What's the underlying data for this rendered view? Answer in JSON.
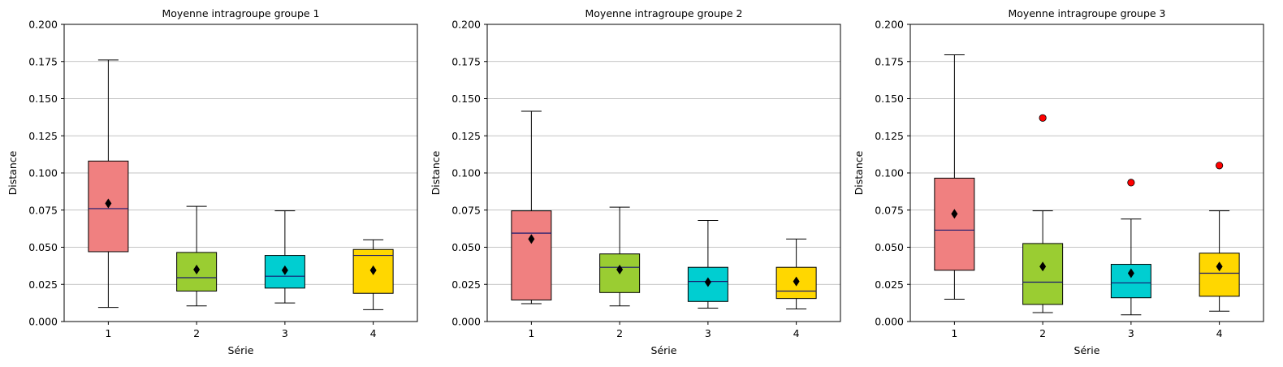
{
  "colors": {
    "box_fills": [
      "#f08080",
      "#9acd32",
      "#00ced1",
      "#ffd700"
    ],
    "median_line": "#191970",
    "mean_marker": "#000000",
    "outlier_fill": "#ff0000",
    "grid": "#b0b0b0"
  },
  "chart_data": [
    {
      "type": "box",
      "title": "Moyenne intragroupe groupe 1",
      "xlabel": "Série",
      "ylabel": "Distance",
      "ylim": [
        0,
        0.2
      ],
      "yticks": [
        "0.000",
        "0.025",
        "0.050",
        "0.075",
        "0.100",
        "0.125",
        "0.150",
        "0.175",
        "0.200"
      ],
      "grid": "horizontal",
      "categories": [
        "1",
        "2",
        "3",
        "4"
      ],
      "boxes": [
        {
          "whisker_low": 0.0095,
          "q1": 0.047,
          "median": 0.076,
          "q3": 0.108,
          "whisker_high": 0.176,
          "mean": 0.0795,
          "outliers": []
        },
        {
          "whisker_low": 0.0105,
          "q1": 0.0205,
          "median": 0.0295,
          "q3": 0.0465,
          "whisker_high": 0.0775,
          "mean": 0.035,
          "outliers": []
        },
        {
          "whisker_low": 0.0125,
          "q1": 0.0225,
          "median": 0.0305,
          "q3": 0.0445,
          "whisker_high": 0.0745,
          "mean": 0.0345,
          "outliers": []
        },
        {
          "whisker_low": 0.008,
          "q1": 0.019,
          "median": 0.0445,
          "q3": 0.0485,
          "whisker_high": 0.055,
          "mean": 0.0345,
          "outliers": []
        }
      ]
    },
    {
      "type": "box",
      "title": "Moyenne intragroupe groupe 2",
      "xlabel": "Série",
      "ylabel": "Distance",
      "ylim": [
        0,
        0.2
      ],
      "yticks": [
        "0.000",
        "0.025",
        "0.050",
        "0.075",
        "0.100",
        "0.125",
        "0.150",
        "0.175",
        "0.200"
      ],
      "grid": "horizontal",
      "categories": [
        "1",
        "2",
        "3",
        "4"
      ],
      "boxes": [
        {
          "whisker_low": 0.012,
          "q1": 0.0145,
          "median": 0.0595,
          "q3": 0.0745,
          "whisker_high": 0.1415,
          "mean": 0.0555,
          "outliers": []
        },
        {
          "whisker_low": 0.0105,
          "q1": 0.0195,
          "median": 0.0365,
          "q3": 0.0455,
          "whisker_high": 0.077,
          "mean": 0.035,
          "outliers": []
        },
        {
          "whisker_low": 0.009,
          "q1": 0.0135,
          "median": 0.027,
          "q3": 0.0365,
          "whisker_high": 0.068,
          "mean": 0.0265,
          "outliers": []
        },
        {
          "whisker_low": 0.0085,
          "q1": 0.0155,
          "median": 0.0205,
          "q3": 0.0365,
          "whisker_high": 0.0555,
          "mean": 0.027,
          "outliers": []
        }
      ]
    },
    {
      "type": "box",
      "title": "Moyenne intragroupe groupe 3",
      "xlabel": "Série",
      "ylabel": "Distance",
      "ylim": [
        0,
        0.2
      ],
      "yticks": [
        "0.000",
        "0.025",
        "0.050",
        "0.075",
        "0.100",
        "0.125",
        "0.150",
        "0.175",
        "0.200"
      ],
      "grid": "horizontal",
      "categories": [
        "1",
        "2",
        "3",
        "4"
      ],
      "boxes": [
        {
          "whisker_low": 0.015,
          "q1": 0.0345,
          "median": 0.0615,
          "q3": 0.0965,
          "whisker_high": 0.1795,
          "mean": 0.0725,
          "outliers": []
        },
        {
          "whisker_low": 0.006,
          "q1": 0.0115,
          "median": 0.0265,
          "q3": 0.0525,
          "whisker_high": 0.0745,
          "mean": 0.037,
          "outliers": [
            0.137
          ]
        },
        {
          "whisker_low": 0.0045,
          "q1": 0.016,
          "median": 0.026,
          "q3": 0.0385,
          "whisker_high": 0.069,
          "mean": 0.0325,
          "outliers": [
            0.0935
          ]
        },
        {
          "whisker_low": 0.007,
          "q1": 0.017,
          "median": 0.0325,
          "q3": 0.046,
          "whisker_high": 0.0745,
          "mean": 0.037,
          "outliers": [
            0.105
          ]
        }
      ]
    }
  ]
}
